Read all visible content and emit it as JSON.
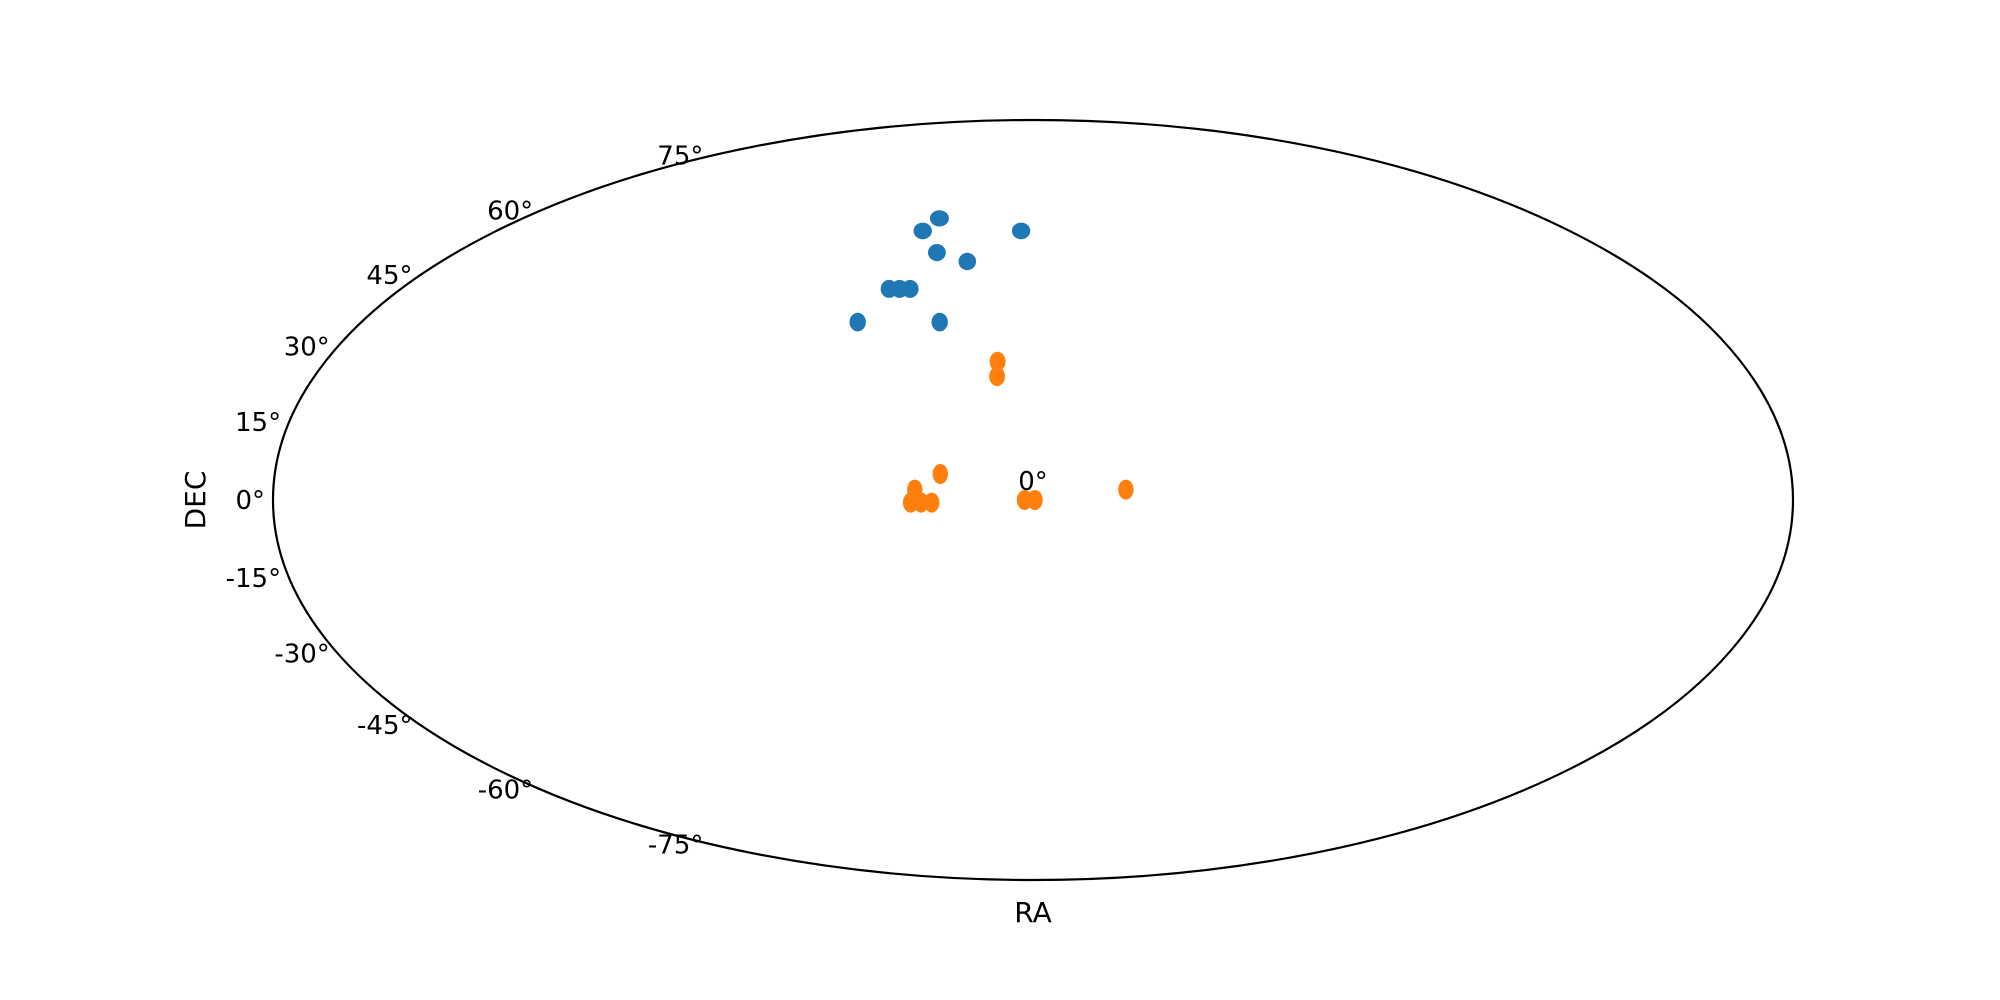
{
  "chart_data": {
    "type": "scatter",
    "projection": "mollweide",
    "title": "",
    "xlabel": "RA",
    "ylabel": "DEC",
    "grid": false,
    "legend": "none",
    "x_tick_labels": [
      "0°"
    ],
    "y_ticks": [
      -75,
      -60,
      -45,
      -30,
      -15,
      0,
      15,
      30,
      45,
      60,
      75
    ],
    "y_tick_labels": [
      "-75°",
      "-60°",
      "-45°",
      "-30°",
      "-15°",
      "0°",
      "15°",
      "30°",
      "45°",
      "60°",
      "75°"
    ],
    "series": [
      {
        "color": "#1f77b4",
        "points": [
          {
            "ra": -33,
            "dec": 58
          },
          {
            "ra": -37,
            "dec": 55
          },
          {
            "ra": -30,
            "dec": 50
          },
          {
            "ra": -20,
            "dec": 48
          },
          {
            "ra": -4,
            "dec": 55
          },
          {
            "ra": -41,
            "dec": 42
          },
          {
            "ra": -38,
            "dec": 42
          },
          {
            "ra": -35,
            "dec": 42
          },
          {
            "ra": -47,
            "dec": 35
          },
          {
            "ra": -25,
            "dec": 35
          }
        ]
      },
      {
        "color": "#ff7f0e",
        "points": [
          {
            "ra": -9,
            "dec": 27
          },
          {
            "ra": -9,
            "dec": 24
          },
          {
            "ra": -22,
            "dec": 5
          },
          {
            "ra": -28,
            "dec": 2
          },
          {
            "ra": -29,
            "dec": -0.5
          },
          {
            "ra": -26.5,
            "dec": -0.5
          },
          {
            "ra": -24,
            "dec": -0.5
          },
          {
            "ra": -2,
            "dec": 0
          },
          {
            "ra": 0.5,
            "dec": 0
          },
          {
            "ra": 22,
            "dec": 2
          }
        ]
      }
    ]
  }
}
